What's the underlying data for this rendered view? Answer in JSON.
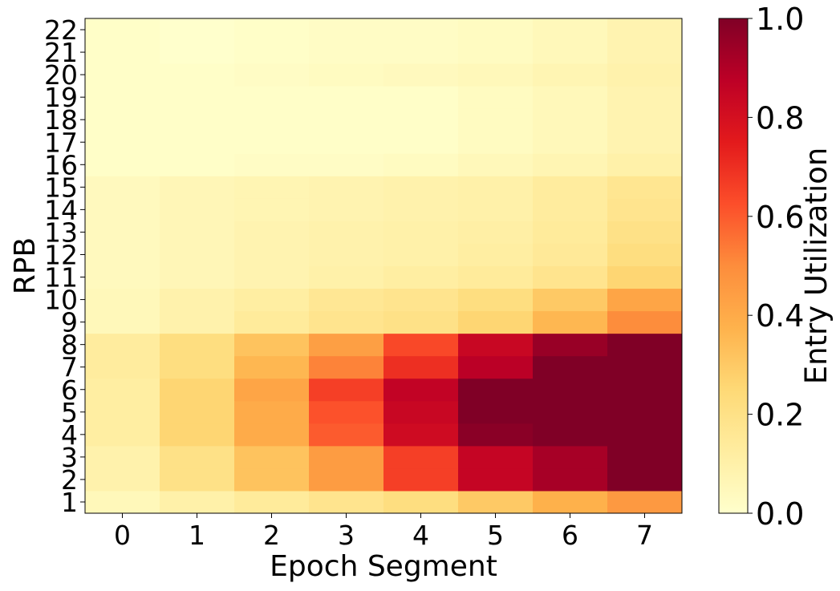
{
  "chart_data": {
    "type": "heatmap",
    "title": "",
    "xlabel": "Epoch Segment",
    "ylabel": "RPB",
    "x_categories": [
      "0",
      "1",
      "2",
      "3",
      "4",
      "5",
      "6",
      "7"
    ],
    "y_categories": [
      "1",
      "2",
      "3",
      "4",
      "5",
      "6",
      "7",
      "8",
      "9",
      "10",
      "11",
      "12",
      "13",
      "14",
      "15",
      "16",
      "17",
      "18",
      "19",
      "20",
      "21",
      "22"
    ],
    "values": [
      [
        0.05,
        0.1,
        0.14,
        0.18,
        0.22,
        0.3,
        0.38,
        0.46
      ],
      [
        0.09,
        0.2,
        0.32,
        0.45,
        0.66,
        0.85,
        0.92,
        1.0
      ],
      [
        0.09,
        0.2,
        0.32,
        0.45,
        0.66,
        0.85,
        0.92,
        1.0
      ],
      [
        0.12,
        0.26,
        0.4,
        0.6,
        0.82,
        0.98,
        1.0,
        1.0
      ],
      [
        0.12,
        0.26,
        0.4,
        0.62,
        0.84,
        1.0,
        1.0,
        1.0
      ],
      [
        0.12,
        0.26,
        0.42,
        0.66,
        0.86,
        1.0,
        1.0,
        1.0
      ],
      [
        0.13,
        0.22,
        0.36,
        0.52,
        0.7,
        0.88,
        1.0,
        1.0
      ],
      [
        0.13,
        0.22,
        0.32,
        0.44,
        0.64,
        0.84,
        0.95,
        1.0
      ],
      [
        0.05,
        0.09,
        0.14,
        0.18,
        0.2,
        0.26,
        0.36,
        0.5
      ],
      [
        0.05,
        0.09,
        0.12,
        0.16,
        0.18,
        0.22,
        0.3,
        0.42
      ],
      [
        0.04,
        0.06,
        0.08,
        0.1,
        0.12,
        0.14,
        0.18,
        0.26
      ],
      [
        0.04,
        0.06,
        0.08,
        0.09,
        0.1,
        0.12,
        0.15,
        0.22
      ],
      [
        0.04,
        0.06,
        0.08,
        0.09,
        0.1,
        0.11,
        0.14,
        0.2
      ],
      [
        0.04,
        0.06,
        0.07,
        0.08,
        0.09,
        0.1,
        0.13,
        0.18
      ],
      [
        0.04,
        0.06,
        0.07,
        0.08,
        0.09,
        0.1,
        0.13,
        0.17
      ],
      [
        0.01,
        0.01,
        0.02,
        0.02,
        0.03,
        0.05,
        0.07,
        0.1
      ],
      [
        0.01,
        0.01,
        0.01,
        0.01,
        0.01,
        0.03,
        0.05,
        0.08
      ],
      [
        0.01,
        0.01,
        0.01,
        0.01,
        0.01,
        0.03,
        0.05,
        0.08
      ],
      [
        0.01,
        0.01,
        0.01,
        0.01,
        0.01,
        0.03,
        0.05,
        0.08
      ],
      [
        0.01,
        0.01,
        0.02,
        0.03,
        0.04,
        0.05,
        0.07,
        0.09
      ],
      [
        0.01,
        0.0,
        0.01,
        0.02,
        0.02,
        0.03,
        0.05,
        0.08
      ],
      [
        0.01,
        0.0,
        0.01,
        0.02,
        0.02,
        0.03,
        0.05,
        0.08
      ]
    ],
    "colormap": "YlOrRd",
    "vmin": 0.0,
    "vmax": 1.0,
    "colorbar": {
      "label": "Entry Utilization",
      "ticks": [
        "0.0",
        "0.2",
        "0.4",
        "0.6",
        "0.8",
        "1.0"
      ],
      "tick_values": [
        0.0,
        0.2,
        0.4,
        0.6,
        0.8,
        1.0
      ],
      "position": "right"
    },
    "grid": false,
    "legend": "none"
  }
}
